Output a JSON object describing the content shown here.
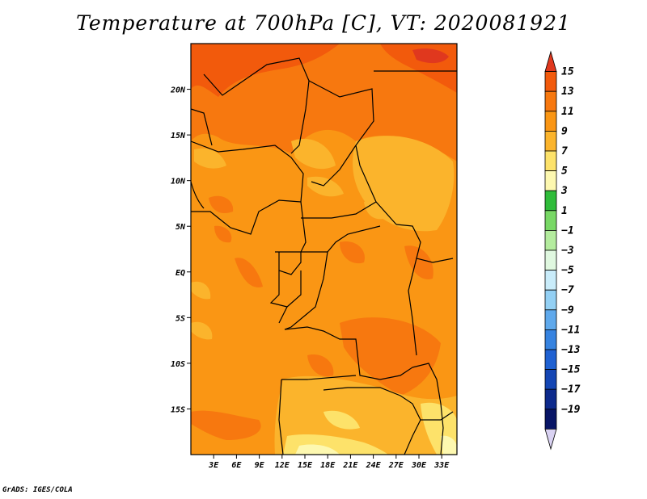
{
  "title": "Temperature at 700hPa [C], VT: 2020081921",
  "credit": "GrADS: IGES/COLA",
  "map": {
    "region": "Central Africa",
    "lon_range": [
      0,
      35
    ],
    "lat_range": [
      -20,
      25
    ],
    "lat_ticks": [
      {
        "value": 20,
        "label": "20N"
      },
      {
        "value": 15,
        "label": "15N"
      },
      {
        "value": 10,
        "label": "10N"
      },
      {
        "value": 5,
        "label": "5N"
      },
      {
        "value": 0,
        "label": "EQ"
      },
      {
        "value": -5,
        "label": "5S"
      },
      {
        "value": -10,
        "label": "10S"
      },
      {
        "value": -15,
        "label": "15S"
      }
    ],
    "lon_ticks": [
      {
        "value": 3,
        "label": "3E"
      },
      {
        "value": 6,
        "label": "6E"
      },
      {
        "value": 9,
        "label": "9E"
      },
      {
        "value": 12,
        "label": "12E"
      },
      {
        "value": 15,
        "label": "15E"
      },
      {
        "value": 18,
        "label": "18E"
      },
      {
        "value": 21,
        "label": "21E"
      },
      {
        "value": 24,
        "label": "24E"
      },
      {
        "value": 27,
        "label": "27E"
      },
      {
        "value": 30,
        "label": "30E"
      },
      {
        "value": 33,
        "label": "33E"
      }
    ]
  },
  "colorbar": {
    "labels": [
      "15",
      "13",
      "11",
      "9",
      "7",
      "5",
      "3",
      "1",
      "−1",
      "−3",
      "−5",
      "−7",
      "−9",
      "−11",
      "−13",
      "−15",
      "−17",
      "−19"
    ],
    "colors": [
      "#e0381e",
      "#f25a0c",
      "#f7780f",
      "#fa9614",
      "#fbb42c",
      "#fde26a",
      "#fdf8b0",
      "#2fbc3a",
      "#78d865",
      "#b4ec9e",
      "#e0f8e0",
      "#c9ecfa",
      "#93d0f4",
      "#5fa9ec",
      "#3683e0",
      "#1f61d2",
      "#1446b4",
      "#0d2a8c",
      "#081566",
      "#d9d2f2"
    ]
  }
}
